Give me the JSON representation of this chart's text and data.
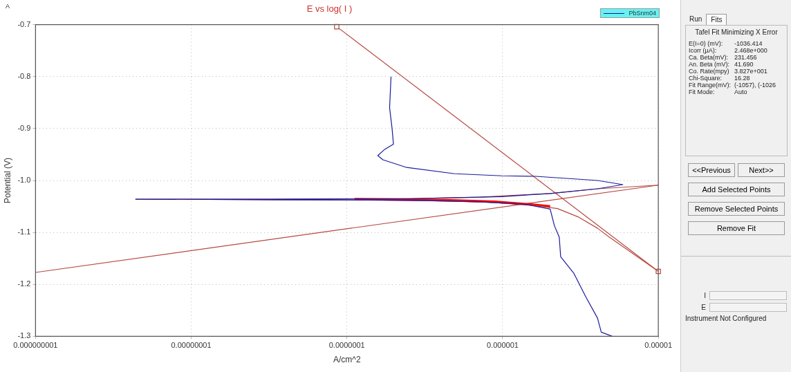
{
  "chart_data": {
    "type": "line",
    "title": "E vs log( I )",
    "xlabel": "A/cm^2",
    "ylabel": "Potential (V)",
    "log": "x",
    "xlim": [
      1e-09,
      1e-05
    ],
    "ylim": [
      -1.3,
      -0.7
    ],
    "xticks": [
      {
        "value": 1e-09,
        "label": "0.000000001"
      },
      {
        "value": 1e-08,
        "label": "0.00000001"
      },
      {
        "value": 1e-07,
        "label": "0.0000001"
      },
      {
        "value": 1e-06,
        "label": "0.000001"
      },
      {
        "value": 1e-05,
        "label": "0.00001"
      }
    ],
    "yticks": [
      {
        "value": -1.3,
        "label": "-1.3"
      },
      {
        "value": -1.2,
        "label": "-1.2"
      },
      {
        "value": -1.1,
        "label": "-1.1"
      },
      {
        "value": -1.0,
        "label": "-1.0"
      },
      {
        "value": -0.9,
        "label": "-0.9"
      },
      {
        "value": -0.8,
        "label": "-0.8"
      },
      {
        "value": -0.7,
        "label": "-0.7"
      }
    ],
    "grid": true,
    "legend": "top right",
    "series": [
      {
        "name": "PbSnm04",
        "color": "#1a1a9c",
        "marker": "none",
        "x": [
          5.06e-06,
          4.3e-06,
          4.07e-06,
          3.42e-06,
          2.87e-06,
          2.36e-06,
          2.31e-06,
          2.15e-06,
          2.02e-06,
          1.41e-06,
          7.2e-07,
          2.57e-07,
          3.27e-08,
          4.4e-09,
          3.27e-08,
          2.57e-07,
          9.9e-07,
          2.02e-06,
          4.07e-06,
          5.92e-06,
          4.07e-06,
          1.63e-06,
          9.9e-07,
          4.92e-07,
          2.42e-07,
          1.7e-07,
          1.58e-07,
          1.75e-07,
          1.99e-07,
          1.95e-07,
          1.88e-07,
          1.92e-07
        ],
        "values": [
          -1.3,
          -1.292,
          -1.265,
          -1.224,
          -1.179,
          -1.147,
          -1.109,
          -1.087,
          -1.055,
          -1.046,
          -1.041,
          -1.038,
          -1.037,
          -1.036,
          -1.036,
          -1.035,
          -1.031,
          -1.025,
          -1.016,
          -1.008,
          -1.0,
          -0.992,
          -0.991,
          -0.987,
          -0.975,
          -0.96,
          -0.952,
          -0.94,
          -0.93,
          -0.9,
          -0.86,
          -0.8
        ]
      },
      {
        "color": "#b5483f",
        "marker": "none",
        "x": [
          1e-05,
          4.85e-06,
          4.07e-06,
          3.05e-06,
          2.25e-06,
          1.41e-06,
          7.2e-07,
          2.57e-07,
          3.27e-08,
          4.4e-09,
          3.27e-08,
          2.57e-07,
          7.2e-07,
          2.02e-06,
          4.07e-06,
          1e-05
        ],
        "values": [
          -1.175,
          -1.109,
          -1.092,
          -1.07,
          -1.054,
          -1.046,
          -1.041,
          -1.038,
          -1.037,
          -1.036,
          -1.036,
          -1.035,
          -1.032,
          -1.025,
          -1.016,
          -1.009
        ]
      },
      {
        "color": "#ff0000",
        "marker": "none",
        "x": [
          1.12e-07,
          4.31e-07,
          8.9e-07,
          1.48e-06,
          2.02e-06
        ],
        "values": [
          -1.036,
          -1.038,
          -1.041,
          -1.046,
          -1.05
        ]
      },
      {
        "color": "#b5483f",
        "marker": "square",
        "x": [
          8.6e-08,
          1e-05
        ],
        "values": [
          -0.704,
          -1.175
        ]
      },
      {
        "color": "#b5483f",
        "marker": "none",
        "x": [
          1e-09,
          1e-05
        ],
        "values": [
          -1.177,
          -1.009
        ]
      }
    ],
    "annotations": [
      "A",
      "Run",
      "Fits",
      "Tafel Fit Minimizing X Error",
      "E(I=0) (mV):",
      "-1036.414",
      "Icorr (µA):",
      "2.468e+000",
      "Ca. Beta(mV):",
      "231.456",
      "An. Beta (mV):",
      "41.690",
      "Co. Rate(mpy)",
      "3.827e+001",
      "Chi-Square:",
      "16.28",
      "Fit Range(mV):",
      "(-1057), (-1026",
      "Fit Mode:",
      "Auto",
      "<<Previous",
      "Next>>",
      "Add Selected Points",
      "Remove Selected Points",
      "Remove Fit",
      "I",
      "E",
      "Instrument Not Configured"
    ]
  }
}
